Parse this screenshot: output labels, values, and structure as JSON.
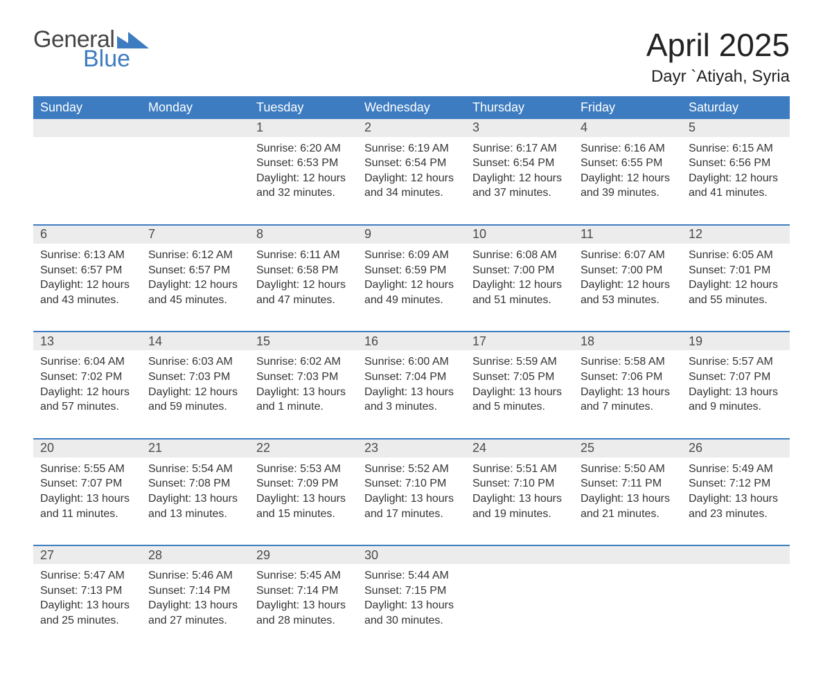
{
  "brand": {
    "word1": "General",
    "word2": "Blue",
    "word2_color": "#3d7cc0",
    "tri_color": "#3d7cc0"
  },
  "header": {
    "title": "April 2025",
    "location": "Dayr `Atiyah, Syria"
  },
  "style": {
    "header_bg": "#3d7cc0",
    "header_fg": "#ffffff",
    "daynum_bg": "#ececec",
    "daynum_fg": "#4a4a4a",
    "body_fg": "#333333",
    "week_border": "#3d7cc0",
    "page_bg": "#ffffff",
    "title_fontsize": 46,
    "location_fontsize": 24,
    "th_fontsize": 18,
    "cell_fontsize": 16
  },
  "columns": [
    "Sunday",
    "Monday",
    "Tuesday",
    "Wednesday",
    "Thursday",
    "Friday",
    "Saturday"
  ],
  "weeks": [
    [
      null,
      null,
      {
        "n": "1",
        "sunrise": "6:20 AM",
        "sunset": "6:53 PM",
        "dl1": "12 hours",
        "dl2": "and 32 minutes."
      },
      {
        "n": "2",
        "sunrise": "6:19 AM",
        "sunset": "6:54 PM",
        "dl1": "12 hours",
        "dl2": "and 34 minutes."
      },
      {
        "n": "3",
        "sunrise": "6:17 AM",
        "sunset": "6:54 PM",
        "dl1": "12 hours",
        "dl2": "and 37 minutes."
      },
      {
        "n": "4",
        "sunrise": "6:16 AM",
        "sunset": "6:55 PM",
        "dl1": "12 hours",
        "dl2": "and 39 minutes."
      },
      {
        "n": "5",
        "sunrise": "6:15 AM",
        "sunset": "6:56 PM",
        "dl1": "12 hours",
        "dl2": "and 41 minutes."
      }
    ],
    [
      {
        "n": "6",
        "sunrise": "6:13 AM",
        "sunset": "6:57 PM",
        "dl1": "12 hours",
        "dl2": "and 43 minutes."
      },
      {
        "n": "7",
        "sunrise": "6:12 AM",
        "sunset": "6:57 PM",
        "dl1": "12 hours",
        "dl2": "and 45 minutes."
      },
      {
        "n": "8",
        "sunrise": "6:11 AM",
        "sunset": "6:58 PM",
        "dl1": "12 hours",
        "dl2": "and 47 minutes."
      },
      {
        "n": "9",
        "sunrise": "6:09 AM",
        "sunset": "6:59 PM",
        "dl1": "12 hours",
        "dl2": "and 49 minutes."
      },
      {
        "n": "10",
        "sunrise": "6:08 AM",
        "sunset": "7:00 PM",
        "dl1": "12 hours",
        "dl2": "and 51 minutes."
      },
      {
        "n": "11",
        "sunrise": "6:07 AM",
        "sunset": "7:00 PM",
        "dl1": "12 hours",
        "dl2": "and 53 minutes."
      },
      {
        "n": "12",
        "sunrise": "6:05 AM",
        "sunset": "7:01 PM",
        "dl1": "12 hours",
        "dl2": "and 55 minutes."
      }
    ],
    [
      {
        "n": "13",
        "sunrise": "6:04 AM",
        "sunset": "7:02 PM",
        "dl1": "12 hours",
        "dl2": "and 57 minutes."
      },
      {
        "n": "14",
        "sunrise": "6:03 AM",
        "sunset": "7:03 PM",
        "dl1": "12 hours",
        "dl2": "and 59 minutes."
      },
      {
        "n": "15",
        "sunrise": "6:02 AM",
        "sunset": "7:03 PM",
        "dl1": "13 hours",
        "dl2": "and 1 minute."
      },
      {
        "n": "16",
        "sunrise": "6:00 AM",
        "sunset": "7:04 PM",
        "dl1": "13 hours",
        "dl2": "and 3 minutes."
      },
      {
        "n": "17",
        "sunrise": "5:59 AM",
        "sunset": "7:05 PM",
        "dl1": "13 hours",
        "dl2": "and 5 minutes."
      },
      {
        "n": "18",
        "sunrise": "5:58 AM",
        "sunset": "7:06 PM",
        "dl1": "13 hours",
        "dl2": "and 7 minutes."
      },
      {
        "n": "19",
        "sunrise": "5:57 AM",
        "sunset": "7:07 PM",
        "dl1": "13 hours",
        "dl2": "and 9 minutes."
      }
    ],
    [
      {
        "n": "20",
        "sunrise": "5:55 AM",
        "sunset": "7:07 PM",
        "dl1": "13 hours",
        "dl2": "and 11 minutes."
      },
      {
        "n": "21",
        "sunrise": "5:54 AM",
        "sunset": "7:08 PM",
        "dl1": "13 hours",
        "dl2": "and 13 minutes."
      },
      {
        "n": "22",
        "sunrise": "5:53 AM",
        "sunset": "7:09 PM",
        "dl1": "13 hours",
        "dl2": "and 15 minutes."
      },
      {
        "n": "23",
        "sunrise": "5:52 AM",
        "sunset": "7:10 PM",
        "dl1": "13 hours",
        "dl2": "and 17 minutes."
      },
      {
        "n": "24",
        "sunrise": "5:51 AM",
        "sunset": "7:10 PM",
        "dl1": "13 hours",
        "dl2": "and 19 minutes."
      },
      {
        "n": "25",
        "sunrise": "5:50 AM",
        "sunset": "7:11 PM",
        "dl1": "13 hours",
        "dl2": "and 21 minutes."
      },
      {
        "n": "26",
        "sunrise": "5:49 AM",
        "sunset": "7:12 PM",
        "dl1": "13 hours",
        "dl2": "and 23 minutes."
      }
    ],
    [
      {
        "n": "27",
        "sunrise": "5:47 AM",
        "sunset": "7:13 PM",
        "dl1": "13 hours",
        "dl2": "and 25 minutes."
      },
      {
        "n": "28",
        "sunrise": "5:46 AM",
        "sunset": "7:14 PM",
        "dl1": "13 hours",
        "dl2": "and 27 minutes."
      },
      {
        "n": "29",
        "sunrise": "5:45 AM",
        "sunset": "7:14 PM",
        "dl1": "13 hours",
        "dl2": "and 28 minutes."
      },
      {
        "n": "30",
        "sunrise": "5:44 AM",
        "sunset": "7:15 PM",
        "dl1": "13 hours",
        "dl2": "and 30 minutes."
      },
      null,
      null,
      null
    ]
  ],
  "labels": {
    "sunrise": "Sunrise: ",
    "sunset": "Sunset: ",
    "daylight": "Daylight: "
  }
}
